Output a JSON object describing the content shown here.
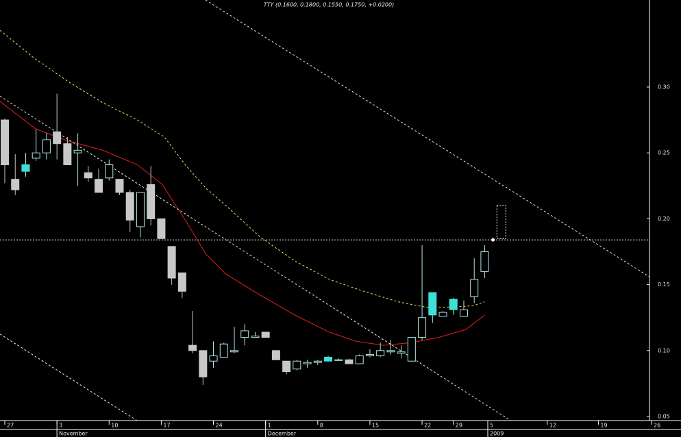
{
  "chart_data": {
    "type": "candlestick",
    "title": "TTY (0.1600, 0.1800, 0.1550, 0.1750, +0.0200)",
    "up_color": "#b4e6e6",
    "down_color": "#c8c8c8",
    "candles": [
      {
        "o": 0.275,
        "h": 0.276,
        "l": 0.227,
        "c": 0.241
      },
      {
        "o": 0.23,
        "h": 0.249,
        "l": 0.218,
        "c": 0.222
      },
      {
        "o": 0.236,
        "h": 0.25,
        "l": 0.232,
        "c": 0.241,
        "color": "#3ee0d8"
      },
      {
        "o": 0.246,
        "h": 0.268,
        "l": 0.244,
        "c": 0.25
      },
      {
        "o": 0.25,
        "h": 0.265,
        "l": 0.245,
        "c": 0.26
      },
      {
        "o": 0.266,
        "h": 0.295,
        "l": 0.245,
        "c": 0.257
      },
      {
        "o": 0.257,
        "h": 0.262,
        "l": 0.241,
        "c": 0.241
      },
      {
        "o": 0.25,
        "h": 0.265,
        "l": 0.225,
        "c": 0.252
      },
      {
        "o": 0.235,
        "h": 0.24,
        "l": 0.228,
        "c": 0.231
      },
      {
        "o": 0.23,
        "h": 0.238,
        "l": 0.22,
        "c": 0.22
      },
      {
        "o": 0.231,
        "h": 0.245,
        "l": 0.229,
        "c": 0.241
      },
      {
        "o": 0.23,
        "h": 0.23,
        "l": 0.218,
        "c": 0.22
      },
      {
        "o": 0.22,
        "h": 0.222,
        "l": 0.19,
        "c": 0.199
      },
      {
        "o": 0.194,
        "h": 0.22,
        "l": 0.186,
        "c": 0.22
      },
      {
        "o": 0.226,
        "h": 0.24,
        "l": 0.195,
        "c": 0.2
      },
      {
        "o": 0.2,
        "h": 0.2,
        "l": 0.185,
        "c": 0.185
      },
      {
        "o": 0.179,
        "h": 0.179,
        "l": 0.15,
        "c": 0.155
      },
      {
        "o": 0.159,
        "h": 0.159,
        "l": 0.14,
        "c": 0.145
      },
      {
        "o": 0.104,
        "h": 0.13,
        "l": 0.098,
        "c": 0.1
      },
      {
        "o": 0.1,
        "h": 0.1,
        "l": 0.074,
        "c": 0.08
      },
      {
        "o": 0.092,
        "h": 0.107,
        "l": 0.087,
        "c": 0.096
      },
      {
        "o": 0.095,
        "h": 0.106,
        "l": 0.095,
        "c": 0.105
      },
      {
        "o": 0.099,
        "h": 0.118,
        "l": 0.098,
        "c": 0.1
      },
      {
        "o": 0.11,
        "h": 0.12,
        "l": 0.104,
        "c": 0.115
      },
      {
        "o": 0.11,
        "h": 0.114,
        "l": 0.11,
        "c": 0.111
      },
      {
        "o": 0.114,
        "h": 0.114,
        "l": 0.11,
        "c": 0.11
      },
      {
        "o": 0.1,
        "h": 0.1,
        "l": 0.093,
        "c": 0.093
      },
      {
        "o": 0.092,
        "h": 0.092,
        "l": 0.082,
        "c": 0.084
      },
      {
        "o": 0.086,
        "h": 0.093,
        "l": 0.085,
        "c": 0.092
      },
      {
        "o": 0.09,
        "h": 0.093,
        "l": 0.087,
        "c": 0.091
      },
      {
        "o": 0.091,
        "h": 0.093,
        "l": 0.089,
        "c": 0.092
      },
      {
        "o": 0.092,
        "h": 0.096,
        "l": 0.092,
        "c": 0.095,
        "color": "#3ee0d8"
      },
      {
        "o": 0.093,
        "h": 0.094,
        "l": 0.093,
        "c": 0.093
      },
      {
        "o": 0.093,
        "h": 0.094,
        "l": 0.09,
        "c": 0.09
      },
      {
        "o": 0.09,
        "h": 0.097,
        "l": 0.09,
        "c": 0.096
      },
      {
        "o": 0.096,
        "h": 0.101,
        "l": 0.095,
        "c": 0.097
      },
      {
        "o": 0.096,
        "h": 0.106,
        "l": 0.095,
        "c": 0.1
      },
      {
        "o": 0.099,
        "h": 0.108,
        "l": 0.097,
        "c": 0.1
      },
      {
        "o": 0.098,
        "h": 0.104,
        "l": 0.094,
        "c": 0.099
      },
      {
        "o": 0.092,
        "h": 0.11,
        "l": 0.092,
        "c": 0.11
      },
      {
        "o": 0.11,
        "h": 0.18,
        "l": 0.108,
        "c": 0.125
      },
      {
        "o": 0.127,
        "h": 0.144,
        "l": 0.121,
        "c": 0.144,
        "color": "#3ee0d8"
      },
      {
        "o": 0.126,
        "h": 0.13,
        "l": 0.126,
        "c": 0.129
      },
      {
        "o": 0.131,
        "h": 0.14,
        "l": 0.127,
        "c": 0.139,
        "color": "#3ee0d8"
      },
      {
        "o": 0.126,
        "h": 0.138,
        "l": 0.126,
        "c": 0.131
      },
      {
        "o": 0.141,
        "h": 0.17,
        "l": 0.136,
        "c": 0.154
      },
      {
        "o": 0.16,
        "h": 0.18,
        "l": 0.155,
        "c": 0.175
      }
    ],
    "lines": [
      {
        "color": "#e02020",
        "dash": "none",
        "x": [
          -0.46,
          3.0,
          6.1,
          9.4,
          12.7,
          15.1,
          17.3,
          19.3,
          21.2,
          24.5,
          27.8,
          31.1,
          33.7,
          36.3,
          39.0,
          41.6,
          44.2,
          46.0
        ],
        "values": [
          0.289,
          0.268,
          0.259,
          0.252,
          0.241,
          0.226,
          0.199,
          0.173,
          0.158,
          0.142,
          0.127,
          0.114,
          0.107,
          0.104,
          0.106,
          0.11,
          0.116,
          0.127
        ]
      },
      {
        "color": "#e8e060",
        "dash": "3,3",
        "x": [
          -0.46,
          2.8,
          6.1,
          9.4,
          12.7,
          15.3,
          17.3,
          19.3,
          21.2,
          24.5,
          27.8,
          31.1,
          34.4,
          37.7,
          40.3,
          42.9,
          44.9,
          46.0
        ],
        "values": [
          0.343,
          0.322,
          0.304,
          0.288,
          0.275,
          0.262,
          0.241,
          0.223,
          0.21,
          0.186,
          0.168,
          0.154,
          0.145,
          0.137,
          0.133,
          0.133,
          0.134,
          0.137
        ]
      },
      {
        "color": "#f0f0d0",
        "dash": "3,3",
        "x": [
          19.25,
          61.8
        ],
        "values": [
          0.366,
          0.156
        ]
      },
      {
        "color": "#f0f0d0",
        "dash": "3,3",
        "x": [
          -0.46,
          48.5
        ],
        "values": [
          0.293,
          0.0469
        ]
      },
      {
        "color": "#f0f0d0",
        "dash": "3,3",
        "x": [
          -0.46,
          12.68
        ],
        "values": [
          0.1125,
          0.0469
        ]
      }
    ],
    "hline": 0.184,
    "marker": {
      "x": 46.8,
      "value": 0.184
    },
    "projection": {
      "x": 47.6,
      "high": 0.21,
      "low": 0.185
    },
    "xlim": [
      -0.46,
      61.8
    ],
    "ylim": [
      0.0469,
      0.366
    ],
    "yticks": [
      0.05,
      {
        "value": 0.1,
        "label": "0.10"
      },
      0.15,
      {
        "value": 0.2,
        "label": "0.20"
      },
      0.25,
      {
        "value": 0.3,
        "label": "0.30"
      }
    ],
    "xticks": [
      {
        "value": 0,
        "label": "27"
      },
      {
        "value": 5,
        "label": "3"
      },
      {
        "value": 10,
        "label": "10"
      },
      {
        "value": 15,
        "label": "17"
      },
      {
        "value": 20,
        "label": "24"
      },
      {
        "value": 25,
        "label": "1"
      },
      {
        "value": 30,
        "label": "8"
      },
      {
        "value": 35,
        "label": "15"
      },
      {
        "value": 40,
        "label": "22"
      },
      {
        "value": 43,
        "label": "29"
      },
      {
        "value": 46.3,
        "label": "5"
      },
      {
        "value": 52,
        "label": "12"
      },
      {
        "value": 56.9,
        "label": "19"
      },
      {
        "value": 62,
        "label": "26"
      }
    ],
    "months": [
      {
        "value": 5,
        "label": "November"
      },
      {
        "value": 25,
        "label": "December"
      },
      {
        "value": 46.3,
        "label": "2009"
      }
    ]
  }
}
